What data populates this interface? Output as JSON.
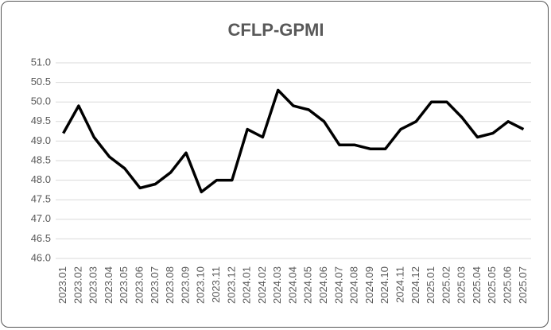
{
  "chart_data": {
    "type": "line",
    "title": "CFLP-GPMI",
    "categories": [
      "2023.01",
      "2023.02",
      "2023.03",
      "2023.04",
      "2023.05",
      "2023.06",
      "2023.07",
      "2023.08",
      "2023.09",
      "2023.10",
      "2023.11",
      "2023.12",
      "2024.01",
      "2024.02",
      "2024.03",
      "2024.04",
      "2024.05",
      "2024.06",
      "2024.07",
      "2024.08",
      "2024.09",
      "2024.10",
      "2024.11",
      "2024.12",
      "2025.01",
      "2025.02",
      "2025.03",
      "2025.04",
      "2025.05",
      "2025.06",
      "2025.07"
    ],
    "values": [
      49.2,
      49.9,
      49.1,
      48.6,
      48.3,
      47.8,
      47.9,
      48.2,
      48.7,
      47.7,
      48.0,
      48.0,
      49.3,
      49.1,
      50.3,
      49.9,
      49.8,
      49.5,
      48.9,
      48.9,
      48.8,
      48.8,
      49.3,
      49.5,
      50.0,
      50.0,
      49.6,
      49.1,
      49.2,
      49.5,
      49.3
    ],
    "color": "#000000",
    "ylim": [
      46.0,
      51.0
    ],
    "yticks": [
      {
        "value": 46.0,
        "label": "46.0"
      },
      46.5,
      {
        "value": 47.0,
        "label": "47.0"
      },
      47.5,
      {
        "value": 48.0,
        "label": "48.0"
      },
      48.5,
      {
        "value": 49.0,
        "label": "49.0"
      },
      49.5,
      {
        "value": 50.0,
        "label": "50.0"
      },
      50.5,
      {
        "value": 51.0,
        "label": "51.0"
      }
    ],
    "grid": true
  }
}
